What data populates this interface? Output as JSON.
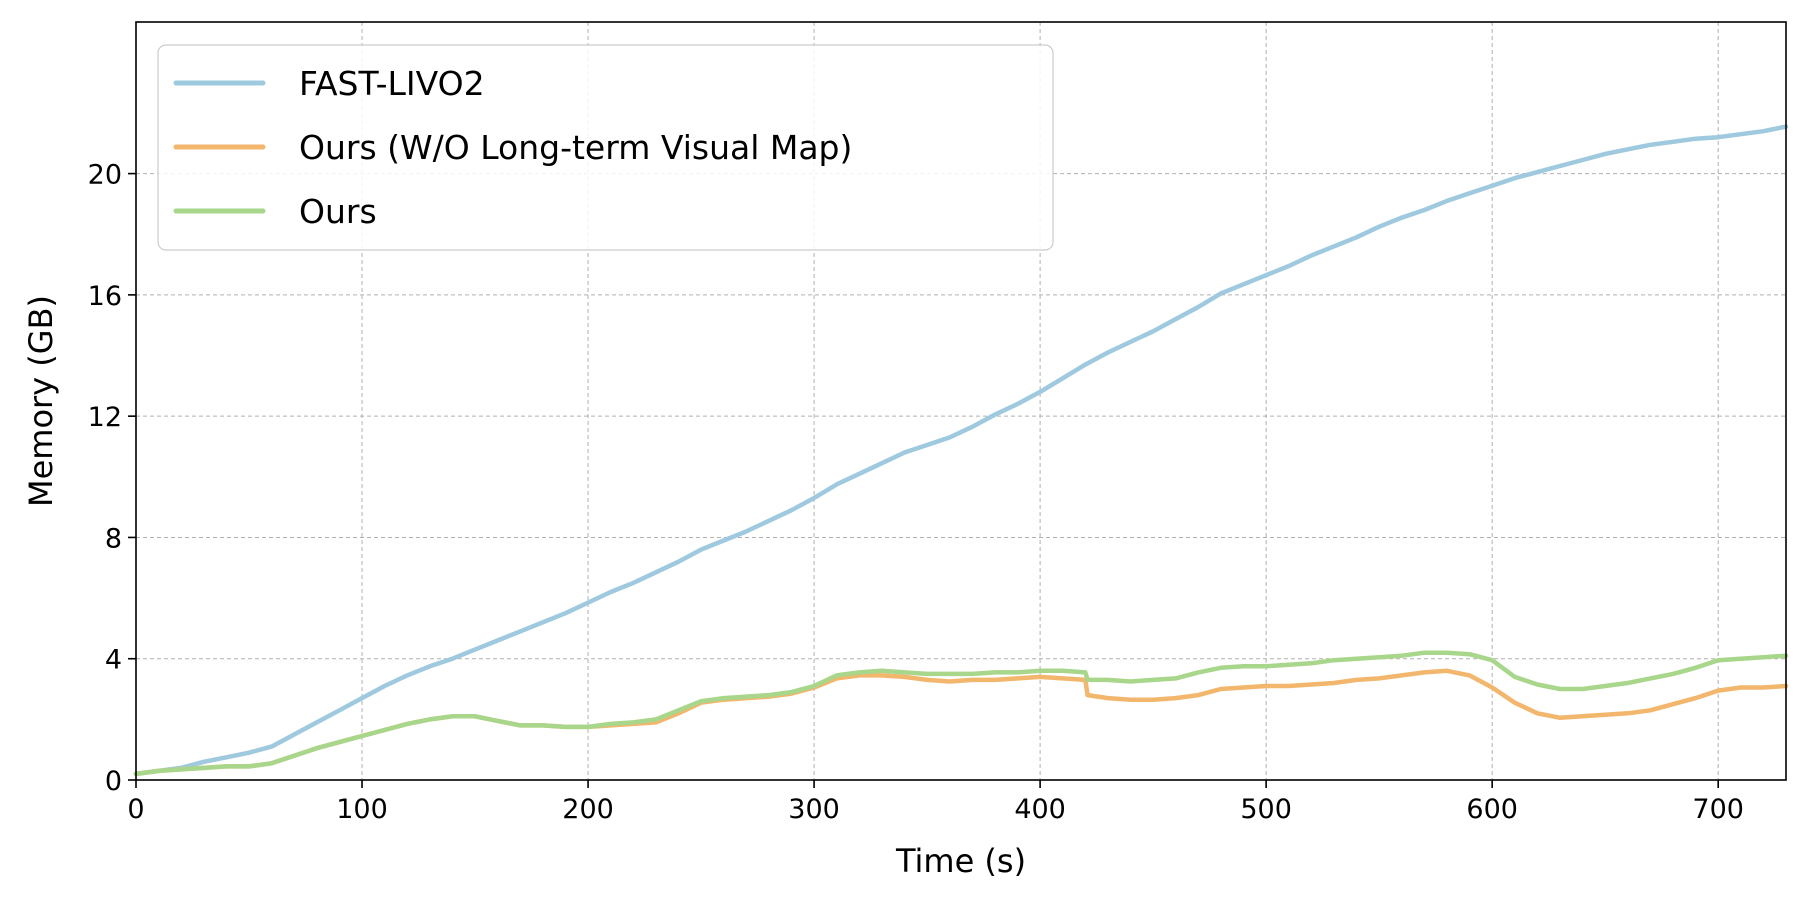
{
  "chart_data": {
    "type": "line",
    "title": "",
    "xlabel": "Time (s)",
    "ylabel": "Memory (GB)",
    "xlim": [
      0,
      730
    ],
    "ylim": [
      0,
      25
    ],
    "xticks": [
      0,
      100,
      200,
      300,
      400,
      500,
      600,
      700
    ],
    "yticks": [
      0,
      4,
      8,
      12,
      16,
      20
    ],
    "grid": true,
    "legend_position": "top-left",
    "series": [
      {
        "name": "FAST-LIVO2",
        "color": "#9ec9de",
        "x": [
          0,
          10,
          20,
          30,
          40,
          50,
          60,
          70,
          80,
          90,
          100,
          110,
          120,
          130,
          140,
          150,
          160,
          170,
          180,
          190,
          200,
          210,
          220,
          230,
          240,
          250,
          260,
          270,
          280,
          290,
          300,
          310,
          320,
          330,
          340,
          350,
          360,
          370,
          380,
          390,
          400,
          410,
          420,
          430,
          440,
          450,
          460,
          470,
          480,
          490,
          500,
          510,
          520,
          530,
          540,
          550,
          560,
          570,
          580,
          590,
          600,
          610,
          620,
          630,
          640,
          650,
          660,
          670,
          680,
          690,
          700,
          710,
          720,
          730
        ],
        "y": [
          0.2,
          0.3,
          0.4,
          0.6,
          0.75,
          0.9,
          1.1,
          1.5,
          1.9,
          2.3,
          2.7,
          3.1,
          3.45,
          3.75,
          4.0,
          4.3,
          4.6,
          4.9,
          5.2,
          5.5,
          5.85,
          6.2,
          6.5,
          6.85,
          7.2,
          7.6,
          7.9,
          8.2,
          8.55,
          8.9,
          9.3,
          9.75,
          10.1,
          10.45,
          10.8,
          11.05,
          11.3,
          11.65,
          12.05,
          12.4,
          12.8,
          13.25,
          13.7,
          14.1,
          14.45,
          14.8,
          15.2,
          15.6,
          16.05,
          16.35,
          16.65,
          16.95,
          17.3,
          17.6,
          17.9,
          18.25,
          18.55,
          18.8,
          19.1,
          19.35,
          19.6,
          19.85,
          20.05,
          20.25,
          20.45,
          20.65,
          20.8,
          20.95,
          21.05,
          21.15,
          21.2,
          21.3,
          21.4,
          21.55
        ]
      },
      {
        "name": "Ours (W/O Long-term Visual Map)",
        "color": "#f2b66d",
        "x": [
          0,
          10,
          20,
          30,
          40,
          50,
          60,
          70,
          80,
          90,
          100,
          110,
          120,
          130,
          140,
          150,
          160,
          170,
          180,
          190,
          200,
          210,
          220,
          230,
          240,
          250,
          260,
          270,
          280,
          290,
          300,
          310,
          320,
          330,
          340,
          350,
          360,
          370,
          380,
          390,
          400,
          410,
          420,
          421,
          430,
          440,
          450,
          460,
          470,
          480,
          490,
          500,
          510,
          520,
          530,
          540,
          550,
          560,
          570,
          580,
          590,
          600,
          610,
          620,
          630,
          640,
          650,
          660,
          670,
          680,
          690,
          700,
          710,
          720,
          730
        ],
        "y": [
          0.2,
          0.3,
          0.35,
          0.4,
          0.45,
          0.45,
          0.55,
          0.8,
          1.05,
          1.25,
          1.45,
          1.65,
          1.85,
          2.0,
          2.1,
          2.1,
          1.95,
          1.8,
          1.8,
          1.75,
          1.75,
          1.8,
          1.85,
          1.9,
          2.2,
          2.55,
          2.65,
          2.7,
          2.75,
          2.85,
          3.05,
          3.35,
          3.45,
          3.45,
          3.4,
          3.3,
          3.25,
          3.3,
          3.3,
          3.35,
          3.4,
          3.35,
          3.3,
          2.8,
          2.7,
          2.65,
          2.65,
          2.7,
          2.8,
          3.0,
          3.05,
          3.1,
          3.1,
          3.15,
          3.2,
          3.3,
          3.35,
          3.45,
          3.55,
          3.6,
          3.45,
          3.05,
          2.55,
          2.2,
          2.05,
          2.1,
          2.15,
          2.2,
          2.3,
          2.5,
          2.7,
          2.95,
          3.05,
          3.05,
          3.1
        ]
      },
      {
        "name": "Ours",
        "color": "#a8d68a",
        "x": [
          0,
          10,
          20,
          30,
          40,
          50,
          60,
          70,
          80,
          90,
          100,
          110,
          120,
          130,
          140,
          150,
          160,
          170,
          180,
          190,
          200,
          210,
          220,
          230,
          240,
          250,
          260,
          270,
          280,
          290,
          300,
          310,
          320,
          330,
          340,
          350,
          360,
          370,
          380,
          390,
          400,
          410,
          420,
          421,
          430,
          440,
          450,
          460,
          470,
          480,
          490,
          500,
          510,
          520,
          530,
          540,
          550,
          560,
          570,
          580,
          590,
          600,
          610,
          620,
          630,
          640,
          650,
          660,
          670,
          680,
          690,
          700,
          710,
          720,
          730
        ],
        "y": [
          0.2,
          0.3,
          0.35,
          0.4,
          0.45,
          0.45,
          0.55,
          0.8,
          1.05,
          1.25,
          1.45,
          1.65,
          1.85,
          2.0,
          2.1,
          2.1,
          1.95,
          1.8,
          1.8,
          1.75,
          1.75,
          1.85,
          1.9,
          2.0,
          2.3,
          2.6,
          2.7,
          2.75,
          2.8,
          2.9,
          3.1,
          3.45,
          3.55,
          3.6,
          3.55,
          3.5,
          3.5,
          3.5,
          3.55,
          3.55,
          3.6,
          3.6,
          3.55,
          3.3,
          3.3,
          3.25,
          3.3,
          3.35,
          3.55,
          3.7,
          3.75,
          3.75,
          3.8,
          3.85,
          3.95,
          4.0,
          4.05,
          4.1,
          4.2,
          4.2,
          4.15,
          3.95,
          3.4,
          3.15,
          3.0,
          3.0,
          3.1,
          3.2,
          3.35,
          3.5,
          3.7,
          3.95,
          4.0,
          4.05,
          4.1
        ]
      }
    ]
  }
}
